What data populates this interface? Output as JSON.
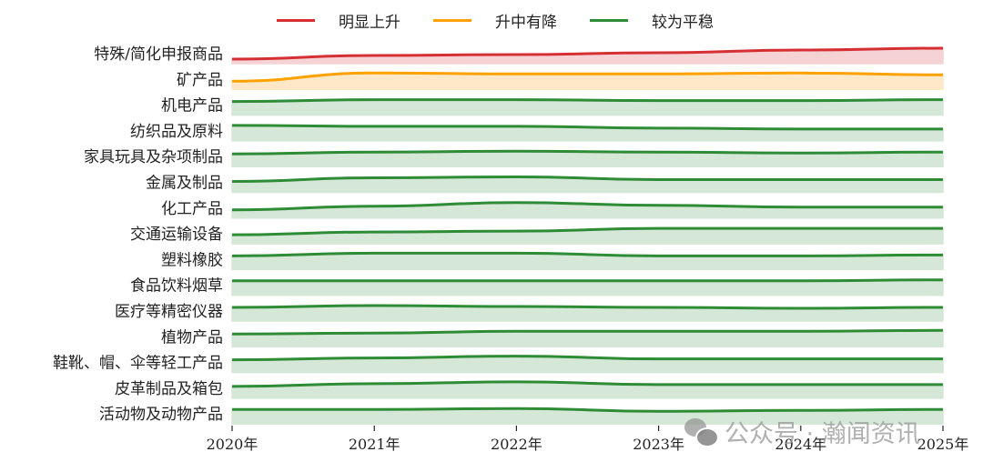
{
  "legend": [
    {
      "label": "明显上升",
      "color": "#d62f33"
    },
    {
      "label": "升中有降",
      "color": "#ffa200"
    },
    {
      "label": "较为平稳",
      "color": "#2e8b36"
    }
  ],
  "watermark": {
    "text": "公众号 · 瀚闻资讯",
    "icon": "wechat-icon"
  },
  "chart_data": {
    "type": "area",
    "title": "",
    "xlabel": "",
    "ylabel": "",
    "x": [
      "2020年",
      "2021年",
      "2022年",
      "2023年",
      "2024年",
      "2025年"
    ],
    "layout": "ridgeline (small multiples, one band per category, relative index scale)",
    "legend_position": "top",
    "grid": false,
    "series": [
      {
        "name": "特殊/简化申报商品",
        "trend": "明显上升",
        "color": "#d62f33",
        "fill": "#f5d3d4",
        "values": [
          5,
          9,
          10,
          12,
          15,
          17
        ]
      },
      {
        "name": "矿产品",
        "trend": "升中有降",
        "color": "#ffa200",
        "fill": "#ffe8c8",
        "values": [
          9,
          18,
          17,
          17,
          18,
          16
        ]
      },
      {
        "name": "机电产品",
        "trend": "较为平稳",
        "color": "#2e8b36",
        "fill": "#d5e7d6",
        "values": [
          15,
          17,
          17,
          16,
          16,
          17
        ]
      },
      {
        "name": "纺织品及原料",
        "trend": "较为平稳",
        "color": "#2e8b36",
        "fill": "#d5e7d6",
        "values": [
          17,
          16,
          16,
          14,
          13,
          13
        ]
      },
      {
        "name": "家具玩具及杂项制品",
        "trend": "较为平稳",
        "color": "#2e8b36",
        "fill": "#d5e7d6",
        "values": [
          14,
          16,
          17,
          16,
          15,
          16
        ]
      },
      {
        "name": "金属及制品",
        "trend": "较为平稳",
        "color": "#2e8b36",
        "fill": "#d5e7d6",
        "values": [
          12,
          16,
          17,
          14,
          14,
          14
        ]
      },
      {
        "name": "化工产品",
        "trend": "较为平稳",
        "color": "#2e8b36",
        "fill": "#d5e7d6",
        "values": [
          9,
          13,
          17,
          14,
          12,
          12
        ]
      },
      {
        "name": "交通运输设备",
        "trend": "较为平稳",
        "color": "#2e8b36",
        "fill": "#d5e7d6",
        "values": [
          10,
          13,
          14,
          17,
          17,
          17
        ]
      },
      {
        "name": "塑料橡胶",
        "trend": "较为平稳",
        "color": "#2e8b36",
        "fill": "#d5e7d6",
        "values": [
          15,
          18,
          18,
          15,
          15,
          16
        ]
      },
      {
        "name": "食品饮料烟草",
        "trend": "较为平稳",
        "color": "#2e8b36",
        "fill": "#d5e7d6",
        "values": [
          16,
          16,
          16,
          16,
          16,
          17
        ]
      },
      {
        "name": "医疗等精密仪器",
        "trend": "较为平稳",
        "color": "#2e8b36",
        "fill": "#d5e7d6",
        "values": [
          15,
          17,
          16,
          15,
          14,
          15
        ]
      },
      {
        "name": "植物产品",
        "trend": "较为平稳",
        "color": "#2e8b36",
        "fill": "#d5e7d6",
        "values": [
          14,
          15,
          17,
          17,
          17,
          18
        ]
      },
      {
        "name": "鞋靴、帽、伞等轻工产品",
        "trend": "较为平稳",
        "color": "#2e8b36",
        "fill": "#d5e7d6",
        "values": [
          14,
          16,
          18,
          15,
          15,
          15
        ]
      },
      {
        "name": "皮革制品及箱包",
        "trend": "较为平稳",
        "color": "#2e8b36",
        "fill": "#d5e7d6",
        "values": [
          13,
          16,
          18,
          15,
          15,
          15
        ]
      },
      {
        "name": "活动物及动物产品",
        "trend": "较为平稳",
        "color": "#2e8b36",
        "fill": "#d5e7d6",
        "values": [
          16,
          16,
          17,
          14,
          15,
          16
        ]
      }
    ]
  }
}
